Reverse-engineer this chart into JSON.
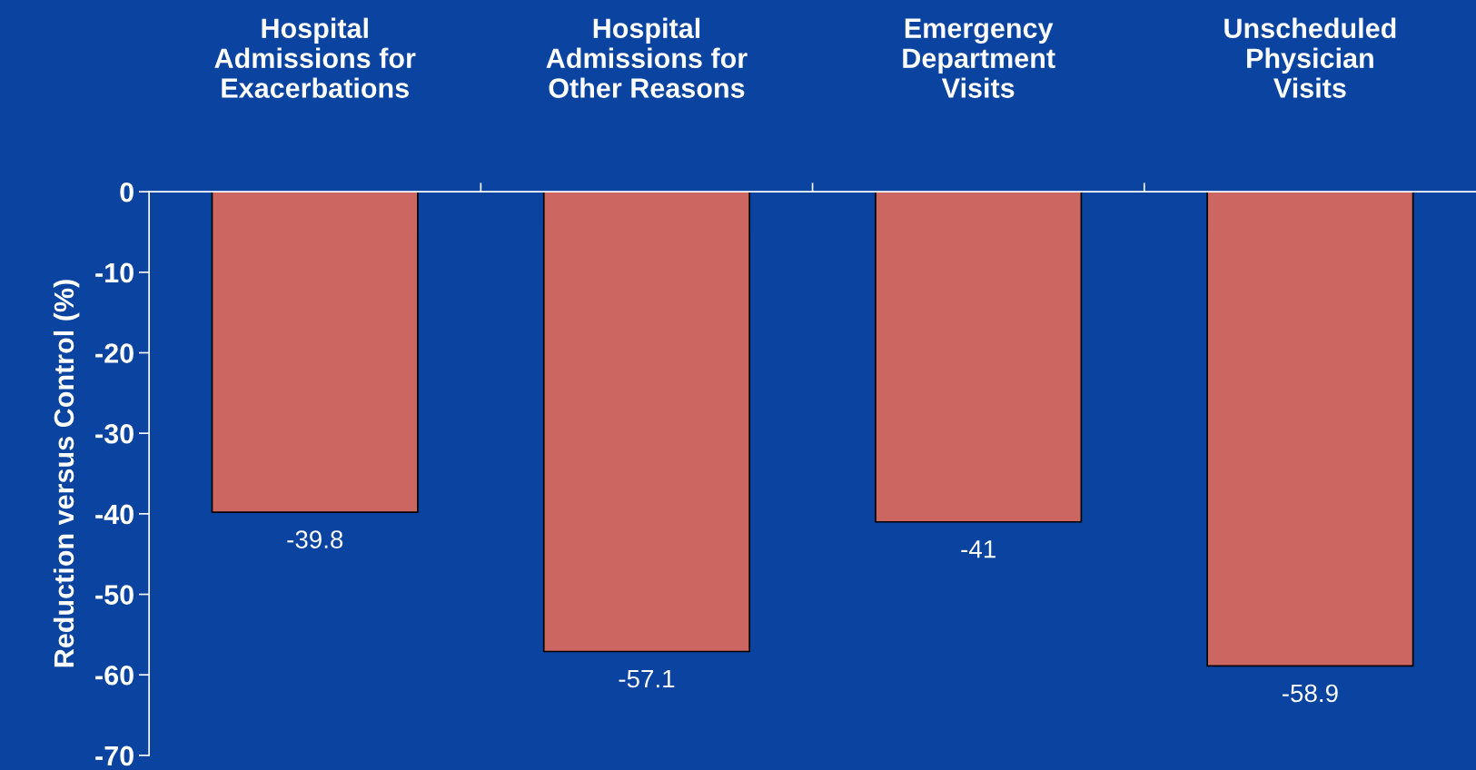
{
  "chart_data": {
    "type": "bar",
    "ylabel": "Reduction versus Control (%)",
    "categories": [
      "Hospital\nAdmissions for\nExacerbations",
      "Hospital\nAdmissions for\nOther Reasons",
      "Emergency\nDepartment\nVisits",
      "Unscheduled\nPhysician\nVisits"
    ],
    "values": [
      -39.8,
      -57.1,
      -41,
      -58.9
    ],
    "color": "#cc6660",
    "ylim": [
      -70,
      0
    ],
    "yticks": [
      0,
      -10,
      -20,
      -30,
      -40,
      -50,
      -60,
      -70
    ],
    "grid": false,
    "data_labels": true
  }
}
